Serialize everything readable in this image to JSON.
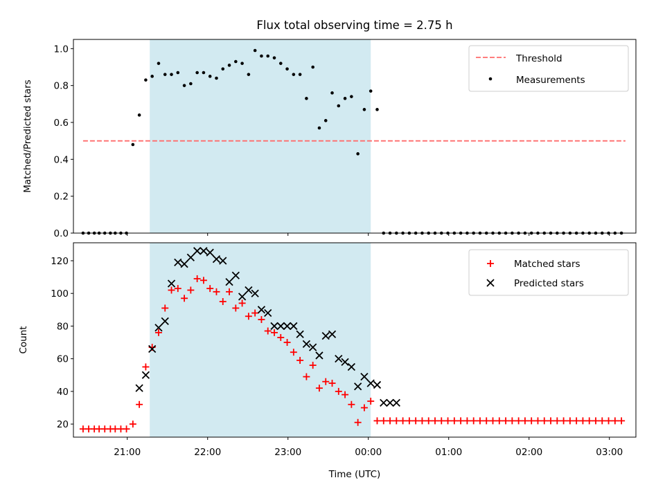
{
  "title": "Flux total observing time = 2.75 h",
  "chart_data": [
    {
      "type": "scatter",
      "ylabel": "Matched/Predicted stars",
      "xlim": [
        -0.67,
        6.33
      ],
      "ylim": [
        0,
        1.05
      ],
      "x_ticks": [
        0.0,
        1.0,
        2.0,
        3.0,
        4.0,
        5.0,
        6.0
      ],
      "y_ticks": [
        "0.0",
        "0.2",
        "0.4",
        "0.6",
        "0.8",
        "1.0"
      ],
      "y_tick_values": [
        0.0,
        0.2,
        0.4,
        0.6,
        0.8,
        1.0
      ],
      "shaded_region": {
        "x": [
          0.28,
          3.03
        ],
        "color": "#add8e6"
      },
      "threshold": {
        "x": [
          -0.55,
          6.2
        ],
        "y": 0.5,
        "color": "#ff6b6b"
      },
      "legend": [
        "Threshold",
        "Measurements"
      ],
      "series": [
        {
          "name": "Measurements",
          "x": [
            -0.55,
            -0.48,
            -0.41,
            -0.35,
            -0.28,
            -0.21,
            -0.15,
            -0.08,
            -0.01,
            0.07,
            0.15,
            0.23,
            0.31,
            0.39,
            0.47,
            0.55,
            0.63,
            0.71,
            0.79,
            0.87,
            0.95,
            1.03,
            1.11,
            1.19,
            1.27,
            1.35,
            1.43,
            1.51,
            1.59,
            1.67,
            1.75,
            1.83,
            1.91,
            1.99,
            2.07,
            2.15,
            2.23,
            2.31,
            2.39,
            2.47,
            2.55,
            2.63,
            2.71,
            2.79,
            2.87,
            2.95,
            3.03,
            3.11,
            3.19,
            3.27,
            3.35,
            3.43,
            3.51,
            3.59,
            3.67,
            3.75,
            3.83,
            3.91,
            3.99,
            4.07,
            4.15,
            4.23,
            4.31,
            4.39,
            4.47,
            4.55,
            4.63,
            4.71,
            4.79,
            4.87,
            4.95,
            5.03,
            5.11,
            5.19,
            5.27,
            5.35,
            5.43,
            5.51,
            5.59,
            5.67,
            5.75,
            5.83,
            5.91,
            5.99,
            6.07,
            6.15
          ],
          "y": [
            0,
            0,
            0,
            0,
            0,
            0,
            0,
            0,
            0,
            0.48,
            0.64,
            0.83,
            0.85,
            0.92,
            0.86,
            0.86,
            0.87,
            0.8,
            0.81,
            0.87,
            0.87,
            0.85,
            0.84,
            0.89,
            0.91,
            0.93,
            0.92,
            0.86,
            0.99,
            0.96,
            0.96,
            0.95,
            0.92,
            0.89,
            0.86,
            0.86,
            0.73,
            0.9,
            0.57,
            0.61,
            0.76,
            0.69,
            0.73,
            0.74,
            0.43,
            0.67,
            0.77,
            0.67,
            0,
            0,
            0,
            0,
            0,
            0,
            0,
            0,
            0,
            0,
            0,
            0,
            0,
            0,
            0,
            0,
            0,
            0,
            0,
            0,
            0,
            0,
            0,
            0,
            0,
            0,
            0,
            0,
            0,
            0,
            0,
            0,
            0,
            0,
            0,
            0,
            0,
            0
          ],
          "color": "#000000"
        }
      ]
    },
    {
      "type": "scatter",
      "xlabel": "Time (UTC)",
      "ylabel": "Count",
      "xlim": [
        -0.67,
        6.33
      ],
      "ylim": [
        12,
        131
      ],
      "x_ticks": [
        0.0,
        1.0,
        2.0,
        3.0,
        4.0,
        5.0,
        6.0
      ],
      "x_tick_labels": [
        "21:00",
        "22:00",
        "23:00",
        "00:00",
        "01:00",
        "02:00",
        "03:00"
      ],
      "y_ticks": [
        "20",
        "40",
        "60",
        "80",
        "100",
        "120"
      ],
      "y_tick_values": [
        20,
        40,
        60,
        80,
        100,
        120
      ],
      "shaded_region": {
        "x": [
          0.28,
          3.03
        ],
        "color": "#add8e6"
      },
      "legend": [
        "Matched stars",
        "Predicted stars"
      ],
      "series": [
        {
          "name": "Matched stars",
          "marker": "plus",
          "color": "#ff0000",
          "x": [
            -0.55,
            -0.48,
            -0.41,
            -0.35,
            -0.28,
            -0.21,
            -0.15,
            -0.08,
            -0.01,
            0.07,
            0.15,
            0.23,
            0.31,
            0.39,
            0.47,
            0.55,
            0.63,
            0.71,
            0.79,
            0.87,
            0.95,
            1.03,
            1.11,
            1.19,
            1.27,
            1.35,
            1.43,
            1.51,
            1.59,
            1.67,
            1.75,
            1.83,
            1.91,
            1.99,
            2.07,
            2.15,
            2.23,
            2.31,
            2.39,
            2.47,
            2.55,
            2.63,
            2.71,
            2.79,
            2.87,
            2.95,
            3.03,
            3.11,
            3.19,
            3.27,
            3.35,
            3.43,
            3.51,
            3.59,
            3.67,
            3.75,
            3.83,
            3.91,
            3.99,
            4.07,
            4.15,
            4.23,
            4.31,
            4.39,
            4.47,
            4.55,
            4.63,
            4.71,
            4.79,
            4.87,
            4.95,
            5.03,
            5.11,
            5.19,
            5.27,
            5.35,
            5.43,
            5.51,
            5.59,
            5.67,
            5.75,
            5.83,
            5.91,
            5.99,
            6.07,
            6.15
          ],
          "y": [
            17,
            17,
            17,
            17,
            17,
            17,
            17,
            17,
            17,
            20,
            32,
            55,
            67,
            76,
            91,
            102,
            103,
            97,
            102,
            109,
            108,
            103,
            101,
            95,
            101,
            91,
            94,
            86,
            88,
            84,
            77,
            76,
            73,
            70,
            64,
            59,
            49,
            56,
            42,
            46,
            45,
            40,
            38,
            32,
            21,
            30,
            34,
            22,
            22,
            22,
            22,
            22,
            22,
            22,
            22,
            22,
            22,
            22,
            22,
            22,
            22,
            22,
            22,
            22,
            22,
            22,
            22,
            22,
            22,
            22,
            22,
            22,
            22,
            22,
            22,
            22,
            22,
            22,
            22,
            22,
            22,
            22,
            22,
            22,
            22,
            22
          ]
        },
        {
          "name": "Predicted stars",
          "marker": "x",
          "color": "#000000",
          "x": [
            0.15,
            0.23,
            0.31,
            0.39,
            0.47,
            0.55,
            0.63,
            0.71,
            0.79,
            0.87,
            0.95,
            1.03,
            1.11,
            1.19,
            1.27,
            1.35,
            1.43,
            1.51,
            1.59,
            1.67,
            1.75,
            1.83,
            1.91,
            1.99,
            2.07,
            2.15,
            2.23,
            2.31,
            2.39,
            2.47,
            2.55,
            2.63,
            2.71,
            2.79,
            2.87,
            2.95,
            3.03,
            3.11,
            3.19,
            3.27,
            3.35
          ],
          "y": [
            42,
            50,
            66,
            79,
            83,
            106,
            119,
            118,
            122,
            126,
            126,
            125,
            121,
            120,
            107,
            111,
            98,
            102,
            100,
            90,
            88,
            80,
            80,
            80,
            80,
            75,
            69,
            67,
            62,
            74,
            75,
            60,
            58,
            55,
            43,
            49,
            45,
            44,
            33,
            33,
            33
          ]
        }
      ]
    }
  ]
}
